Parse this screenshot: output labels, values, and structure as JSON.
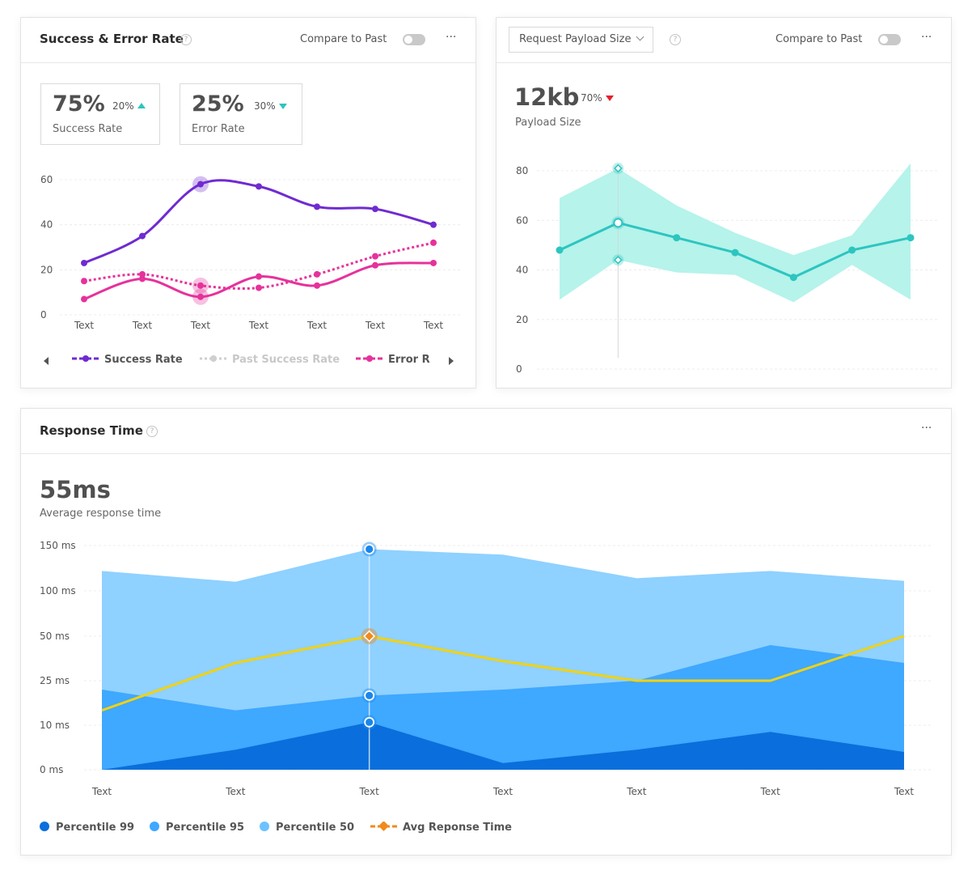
{
  "colors": {
    "success": "#6f2bd1",
    "error": "#e6329b",
    "payload_line": "#2dc5c0",
    "payload_band": "#b5f3eb",
    "p99": "#0a6fdc",
    "p95": "#3fa8ff",
    "p50": "#8fd1ff",
    "avg": "#f2d20f",
    "avg_marker": "#f08a1c"
  },
  "card1": {
    "title": "Success & Error Rate",
    "compare_label": "Compare to Past",
    "more": "···",
    "stats": [
      {
        "value": "75%",
        "delta": "20%",
        "direction": "up",
        "label": "Success Rate"
      },
      {
        "value": "25%",
        "delta": "30%",
        "direction": "down",
        "label": "Error Rate"
      }
    ],
    "legend": [
      "Success Rate",
      "Past Success Rate",
      "Error R"
    ]
  },
  "card2": {
    "select_label": "Request Payload Size",
    "compare_label": "Compare to Past",
    "more": "···",
    "value": "12kb",
    "delta": "70%",
    "direction": "down",
    "label": "Payload Size"
  },
  "card3": {
    "title": "Response Time",
    "more": "···",
    "value": "55ms",
    "label": "Average response time",
    "legend": [
      "Percentile 99",
      "Percentile 95",
      "Percentile 50",
      "Avg Reponse Time"
    ]
  },
  "chart_data": [
    {
      "type": "line",
      "x": [
        "Text",
        "Text",
        "Text",
        "Text",
        "Text",
        "Text",
        "Text"
      ],
      "ylim": [
        0,
        60
      ],
      "yticks": [
        0,
        20,
        40,
        60
      ],
      "series": [
        {
          "name": "Success Rate",
          "style": "solid",
          "values": [
            23,
            35,
            58,
            57,
            48,
            47,
            40
          ]
        },
        {
          "name": "Error R",
          "style": "solid",
          "values": [
            7,
            16,
            8,
            17,
            13,
            22,
            23
          ]
        },
        {
          "name": "",
          "style": "dotted",
          "values": [
            15,
            18,
            13,
            12,
            18,
            26,
            32
          ]
        }
      ],
      "highlight_index": 2
    },
    {
      "type": "area",
      "x": [
        "Text",
        "Text",
        "Text",
        "Text",
        "Text",
        "Text",
        "Text"
      ],
      "ylim": [
        0,
        80
      ],
      "yticks": [
        0,
        20,
        40,
        60,
        80
      ],
      "series": [
        {
          "name": "",
          "values": [
            48,
            59,
            53,
            47,
            37,
            48,
            53
          ]
        },
        {
          "name": "",
          "band": "upper",
          "values": [
            69,
            81,
            66,
            55,
            46,
            54,
            83
          ]
        },
        {
          "name": "",
          "band": "lower",
          "values": [
            28,
            44,
            39,
            38,
            27,
            42,
            28
          ]
        }
      ],
      "highlight_index": 1
    },
    {
      "type": "area",
      "x": [
        "Text",
        "Text",
        "Text",
        "Text",
        "Text",
        "Text",
        "Text"
      ],
      "yticks": [
        "0 ms",
        "10 ms",
        "25 ms",
        "50 ms",
        "100 ms",
        "150 ms"
      ],
      "ytick_values": [
        0,
        10,
        25,
        50,
        100,
        150
      ],
      "series": [
        {
          "name": "Percentile 99",
          "values": [
            0,
            4.5,
            11,
            1.5,
            4.5,
            8.5,
            4
          ]
        },
        {
          "name": "Percentile 95",
          "values": [
            22,
            15,
            20,
            22,
            25,
            45,
            35
          ]
        },
        {
          "name": "Percentile 50",
          "values": [
            122,
            110,
            146,
            140,
            114,
            122,
            111
          ]
        },
        {
          "name": "Avg Reponse Time",
          "values": [
            15,
            35,
            50,
            36,
            25,
            25,
            50
          ]
        }
      ],
      "highlight_index": 2
    }
  ]
}
